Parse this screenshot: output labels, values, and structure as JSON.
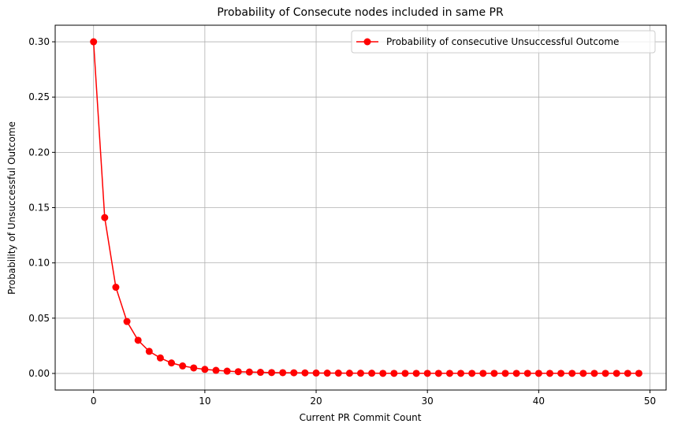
{
  "chart_data": {
    "type": "line",
    "title": "Probability of Consecute nodes included in same PR",
    "xlabel": "Current PR Commit Count",
    "ylabel": "Probability of Unsuccessful Outcome",
    "xlim": [
      -3.45,
      51.45
    ],
    "ylim": [
      -0.015,
      0.315
    ],
    "xticks": [
      0,
      10,
      20,
      30,
      40,
      50
    ],
    "yticks": [
      0.0,
      0.05,
      0.1,
      0.15,
      0.2,
      0.25,
      0.3
    ],
    "xtick_labels": [
      "0",
      "10",
      "20",
      "30",
      "40",
      "50"
    ],
    "ytick_labels": [
      "0.00",
      "0.05",
      "0.10",
      "0.15",
      "0.20",
      "0.25",
      "0.30"
    ],
    "grid": true,
    "legend_position": "top-right",
    "series": [
      {
        "name": "Probability of consecutive Unsuccessful Outcome",
        "color": "#ff0000",
        "marker": "circle",
        "x": [
          0,
          1,
          2,
          3,
          4,
          5,
          6,
          7,
          8,
          9,
          10,
          11,
          12,
          13,
          14,
          15,
          16,
          17,
          18,
          19,
          20,
          21,
          22,
          23,
          24,
          25,
          26,
          27,
          28,
          29,
          30,
          31,
          32,
          33,
          34,
          35,
          36,
          37,
          38,
          39,
          40,
          41,
          42,
          43,
          44,
          45,
          46,
          47,
          48,
          49
        ],
        "y": [
          0.3,
          0.141,
          0.078,
          0.047,
          0.03,
          0.02,
          0.014,
          0.0095,
          0.0068,
          0.005,
          0.0037,
          0.0028,
          0.0021,
          0.0016,
          0.0013,
          0.001,
          0.0008,
          0.0007,
          0.0006,
          0.0005,
          0.0004,
          0.0003,
          0.0003,
          0.0002,
          0.0002,
          0.0002,
          0.0001,
          0.0001,
          0.0001,
          0.0001,
          0.0001,
          0.0001,
          0.0001,
          0.0001,
          0.0001,
          0.0001,
          0.0001,
          0.0001,
          0.0001,
          0.0001,
          0.0001,
          0.0001,
          0.0001,
          0.0001,
          0.0001,
          0.0001,
          0.0001,
          0.0001,
          0.0001,
          0.0001
        ]
      }
    ]
  }
}
